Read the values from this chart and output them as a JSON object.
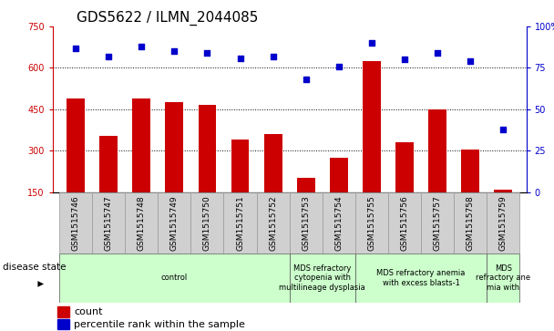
{
  "title": "GDS5622 / ILMN_2044085",
  "samples": [
    "GSM1515746",
    "GSM1515747",
    "GSM1515748",
    "GSM1515749",
    "GSM1515750",
    "GSM1515751",
    "GSM1515752",
    "GSM1515753",
    "GSM1515754",
    "GSM1515755",
    "GSM1515756",
    "GSM1515757",
    "GSM1515758",
    "GSM1515759"
  ],
  "counts": [
    490,
    355,
    490,
    475,
    465,
    340,
    360,
    200,
    275,
    625,
    330,
    450,
    305,
    160
  ],
  "percentiles": [
    87,
    82,
    88,
    85,
    84,
    81,
    82,
    68,
    76,
    90,
    80,
    84,
    79,
    38
  ],
  "ylim_left": [
    150,
    750
  ],
  "ylim_right": [
    0,
    100
  ],
  "yticks_left": [
    150,
    300,
    450,
    600,
    750
  ],
  "yticks_right": [
    0,
    25,
    50,
    75,
    100
  ],
  "bar_color": "#cc0000",
  "dot_color": "#0000cc",
  "grid_color": "#000000",
  "disease_groups": [
    {
      "label": "control",
      "start": 0,
      "end": 7,
      "color": "#ccffcc"
    },
    {
      "label": "MDS refractory\ncytopenia with\nmultilineage dysplasia",
      "start": 7,
      "end": 9,
      "color": "#ccffcc"
    },
    {
      "label": "MDS refractory anemia\nwith excess blasts-1",
      "start": 9,
      "end": 13,
      "color": "#ccffcc"
    },
    {
      "label": "MDS\nrefractory ane\nmia with",
      "start": 13,
      "end": 14,
      "color": "#ccffcc"
    }
  ],
  "disease_state_label": "disease state",
  "legend_count_label": "count",
  "legend_percentile_label": "percentile rank within the sample",
  "title_fontsize": 11,
  "tick_fontsize": 7,
  "legend_fontsize": 8
}
